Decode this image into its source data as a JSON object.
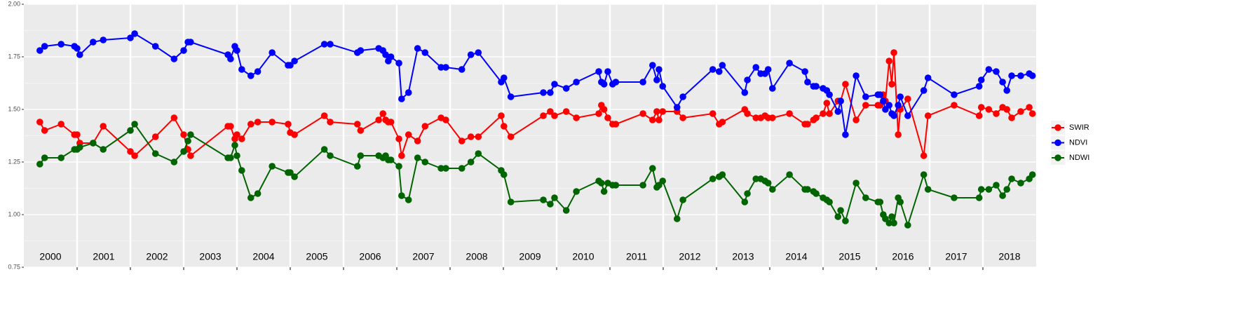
{
  "chart_data": {
    "type": "line",
    "x": [
      2000.3,
      2000.39,
      2000.7,
      2000.95,
      2001.0,
      2001.05,
      2001.3,
      2001.49,
      2002.0,
      2002.08,
      2002.47,
      2002.82,
      2003.0,
      2003.08,
      2003.13,
      2003.83,
      2003.88,
      2003.96,
      2004.0,
      2004.09,
      2004.26,
      2004.39,
      2004.66,
      2004.96,
      2005.0,
      2005.08,
      2005.64,
      2005.75,
      2006.26,
      2006.32,
      2006.66,
      2006.74,
      2006.79,
      2006.84,
      2006.89,
      2007.04,
      2007.09,
      2007.22,
      2007.39,
      2007.53,
      2007.83,
      2007.92,
      2008.22,
      2008.39,
      2008.53,
      2008.96,
      2009.01,
      2009.14,
      2009.75,
      2009.88,
      2009.96,
      2010.18,
      2010.37,
      2010.79,
      2010.84,
      2010.89,
      2010.96,
      2011.05,
      2011.11,
      2011.62,
      2011.8,
      2011.88,
      2011.92,
      2011.99,
      2012.26,
      2012.37,
      2012.93,
      2013.05,
      2013.11,
      2013.53,
      2013.58,
      2013.74,
      2013.83,
      2013.91,
      2013.97,
      2014.05,
      2014.37,
      2014.66,
      2014.71,
      2014.82,
      2014.87,
      2015.0,
      2015.07,
      2015.12,
      2015.28,
      2015.33,
      2015.42,
      2015.62,
      2015.8,
      2016.03,
      2016.07,
      2016.13,
      2016.17,
      2016.24,
      2016.29,
      2016.33,
      2016.41,
      2016.45,
      2016.59,
      2016.89,
      2016.97,
      2017.46,
      2017.93,
      2017.97,
      2018.11,
      2018.25,
      2018.37,
      2018.45,
      2018.54,
      2018.71,
      2018.87,
      2018.93
    ],
    "series": [
      {
        "name": "SWIR",
        "color": "#ff0000",
        "values": [
          1.44,
          1.4,
          1.43,
          1.38,
          1.38,
          1.34,
          1.34,
          1.42,
          1.3,
          1.28,
          1.37,
          1.46,
          1.38,
          1.31,
          1.28,
          1.42,
          1.42,
          1.36,
          1.38,
          1.36,
          1.43,
          1.44,
          1.44,
          1.43,
          1.39,
          1.38,
          1.47,
          1.44,
          1.43,
          1.4,
          1.45,
          1.48,
          1.45,
          1.44,
          1.44,
          1.36,
          1.28,
          1.38,
          1.35,
          1.42,
          1.46,
          1.45,
          1.35,
          1.37,
          1.37,
          1.47,
          1.42,
          1.37,
          1.47,
          1.49,
          1.47,
          1.49,
          1.46,
          1.48,
          1.52,
          1.5,
          1.46,
          1.43,
          1.43,
          1.48,
          1.45,
          1.49,
          1.45,
          1.49,
          1.49,
          1.46,
          1.48,
          1.43,
          1.44,
          1.5,
          1.48,
          1.46,
          1.46,
          1.47,
          1.46,
          1.46,
          1.48,
          1.43,
          1.43,
          1.45,
          1.46,
          1.48,
          1.53,
          1.48,
          1.54,
          1.54,
          1.62,
          1.45,
          1.52,
          1.52,
          1.52,
          1.57,
          1.54,
          1.73,
          1.62,
          1.77,
          1.38,
          1.5,
          1.55,
          1.28,
          1.47,
          1.52,
          1.47,
          1.51,
          1.5,
          1.48,
          1.51,
          1.5,
          1.46,
          1.49,
          1.51,
          1.48
        ]
      },
      {
        "name": "NDVI",
        "color": "#0000ff",
        "values": [
          1.78,
          1.8,
          1.81,
          1.8,
          1.79,
          1.76,
          1.82,
          1.83,
          1.84,
          1.86,
          1.8,
          1.74,
          1.78,
          1.82,
          1.82,
          1.76,
          1.74,
          1.8,
          1.78,
          1.69,
          1.66,
          1.68,
          1.77,
          1.71,
          1.71,
          1.73,
          1.81,
          1.81,
          1.77,
          1.78,
          1.79,
          1.78,
          1.76,
          1.73,
          1.75,
          1.72,
          1.55,
          1.58,
          1.79,
          1.77,
          1.7,
          1.7,
          1.69,
          1.76,
          1.77,
          1.63,
          1.65,
          1.56,
          1.58,
          1.58,
          1.62,
          1.6,
          1.63,
          1.68,
          1.63,
          1.62,
          1.68,
          1.62,
          1.63,
          1.63,
          1.71,
          1.64,
          1.69,
          1.61,
          1.51,
          1.56,
          1.69,
          1.68,
          1.71,
          1.58,
          1.64,
          1.7,
          1.67,
          1.67,
          1.69,
          1.6,
          1.72,
          1.68,
          1.63,
          1.61,
          1.61,
          1.6,
          1.59,
          1.57,
          1.49,
          1.54,
          1.38,
          1.66,
          1.56,
          1.57,
          1.57,
          1.54,
          1.5,
          1.52,
          1.48,
          1.47,
          1.52,
          1.56,
          1.47,
          1.59,
          1.65,
          1.57,
          1.61,
          1.64,
          1.69,
          1.68,
          1.63,
          1.59,
          1.66,
          1.66,
          1.67,
          1.66
        ]
      },
      {
        "name": "NDWI",
        "color": "#006400",
        "values": [
          1.24,
          1.27,
          1.27,
          1.31,
          1.31,
          1.32,
          1.34,
          1.31,
          1.4,
          1.43,
          1.29,
          1.25,
          1.3,
          1.35,
          1.38,
          1.27,
          1.27,
          1.33,
          1.28,
          1.21,
          1.08,
          1.1,
          1.23,
          1.2,
          1.2,
          1.18,
          1.31,
          1.28,
          1.23,
          1.28,
          1.28,
          1.27,
          1.28,
          1.26,
          1.26,
          1.23,
          1.09,
          1.07,
          1.27,
          1.25,
          1.22,
          1.22,
          1.22,
          1.25,
          1.29,
          1.21,
          1.19,
          1.06,
          1.07,
          1.05,
          1.08,
          1.02,
          1.11,
          1.16,
          1.15,
          1.11,
          1.15,
          1.14,
          1.14,
          1.14,
          1.22,
          1.13,
          1.14,
          1.16,
          0.98,
          1.07,
          1.17,
          1.18,
          1.19,
          1.06,
          1.1,
          1.17,
          1.17,
          1.16,
          1.15,
          1.12,
          1.19,
          1.12,
          1.12,
          1.11,
          1.1,
          1.08,
          1.07,
          1.06,
          0.99,
          1.02,
          0.97,
          1.15,
          1.08,
          1.06,
          1.06,
          1.0,
          0.98,
          0.96,
          0.99,
          0.96,
          1.08,
          1.06,
          0.95,
          1.19,
          1.12,
          1.08,
          1.08,
          1.12,
          1.12,
          1.14,
          1.09,
          1.12,
          1.17,
          1.15,
          1.17,
          1.19
        ]
      }
    ],
    "xlim": [
      2000,
      2019
    ],
    "xticks": [
      2001,
      2002,
      2003,
      2004,
      2005,
      2006,
      2007,
      2008,
      2009,
      2010,
      2011,
      2012,
      2013,
      2014,
      2015,
      2016,
      2017,
      2018
    ],
    "ylim": [
      0.75,
      2.0
    ],
    "yticks": [
      {
        "value": 0.75,
        "label": "0.75"
      },
      {
        "value": 1.0,
        "label": "1.00"
      },
      {
        "value": 1.25,
        "label": "1.25"
      },
      {
        "value": 1.5,
        "label": "1.50"
      },
      {
        "value": 1.75,
        "label": "1.75"
      },
      {
        "value": 2.0,
        "label": "2.00"
      }
    ],
    "annotations": [
      {
        "x": 2000.5,
        "text": "2000"
      },
      {
        "x": 2001.5,
        "text": "2001"
      },
      {
        "x": 2002.5,
        "text": "2002"
      },
      {
        "x": 2003.5,
        "text": "2003"
      },
      {
        "x": 2004.5,
        "text": "2004"
      },
      {
        "x": 2005.5,
        "text": "2005"
      },
      {
        "x": 2006.5,
        "text": "2006"
      },
      {
        "x": 2007.5,
        "text": "2007"
      },
      {
        "x": 2008.5,
        "text": "2008"
      },
      {
        "x": 2009.5,
        "text": "2009"
      },
      {
        "x": 2010.5,
        "text": "2010"
      },
      {
        "x": 2011.5,
        "text": "2011"
      },
      {
        "x": 2012.5,
        "text": "2012"
      },
      {
        "x": 2013.5,
        "text": "2013"
      },
      {
        "x": 2014.5,
        "text": "2014"
      },
      {
        "x": 2015.5,
        "text": "2015"
      },
      {
        "x": 2016.5,
        "text": "2016"
      },
      {
        "x": 2017.5,
        "text": "2017"
      },
      {
        "x": 2018.5,
        "text": "2018"
      }
    ],
    "grid": true,
    "legend": "right"
  }
}
